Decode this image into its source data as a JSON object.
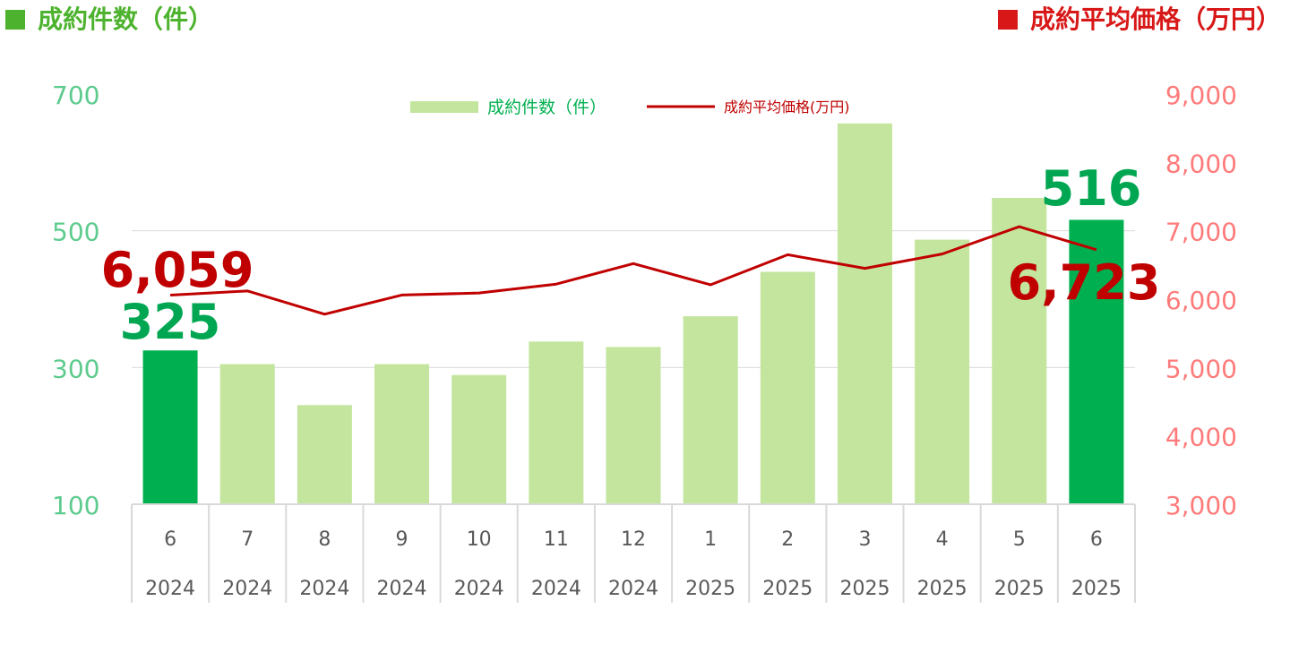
{
  "headers": {
    "left": "成約件数（件）",
    "right": "成約平均価格（万円）"
  },
  "colors": {
    "bar": "#c3e59d",
    "bar_highlight": "#00b050",
    "line": "#c00000",
    "left_axis": "#5ecb8e",
    "right_axis": "#ff7b7b",
    "header_left": "#4db32e",
    "header_right": "#d81818",
    "highlight_label_count": "#00a651",
    "highlight_label_price": "#c00000",
    "grid": "#d9d9d9",
    "tick": "#595959"
  },
  "chart_data": {
    "type": "bar",
    "categories": [
      "6",
      "7",
      "8",
      "9",
      "10",
      "11",
      "12",
      "1",
      "2",
      "3",
      "4",
      "5",
      "6"
    ],
    "years": [
      "2024",
      "2024",
      "2024",
      "2024",
      "2024",
      "2024",
      "2024",
      "2025",
      "2025",
      "2025",
      "2025",
      "2025",
      "2025"
    ],
    "series": [
      {
        "name": "成約件数（件）",
        "type": "bar",
        "axis": "left",
        "values": [
          325,
          305,
          245,
          305,
          289,
          338,
          330,
          375,
          440,
          657,
          487,
          548,
          516
        ]
      },
      {
        "name": "成約平均価格(万円)",
        "type": "line",
        "axis": "right",
        "values": [
          6059,
          6120,
          5780,
          6060,
          6090,
          6220,
          6520,
          6210,
          6650,
          6450,
          6660,
          7060,
          6723
        ]
      }
    ],
    "highlight_indices": [
      0,
      12
    ],
    "annotations": {
      "first_count": "325",
      "first_price": "6,059",
      "last_count": "516",
      "last_price": "6,723"
    },
    "left_axis": {
      "min": 100,
      "max": 700,
      "ticks": [
        "700",
        "500",
        "300",
        "100"
      ]
    },
    "right_axis": {
      "min": 3000,
      "max": 9000,
      "ticks": [
        "9,000",
        "8,000",
        "7,000",
        "6,000",
        "5,000",
        "4,000",
        "3,000"
      ]
    },
    "gridlines": [
      300,
      500
    ],
    "legend": {
      "position": "top-center"
    }
  }
}
